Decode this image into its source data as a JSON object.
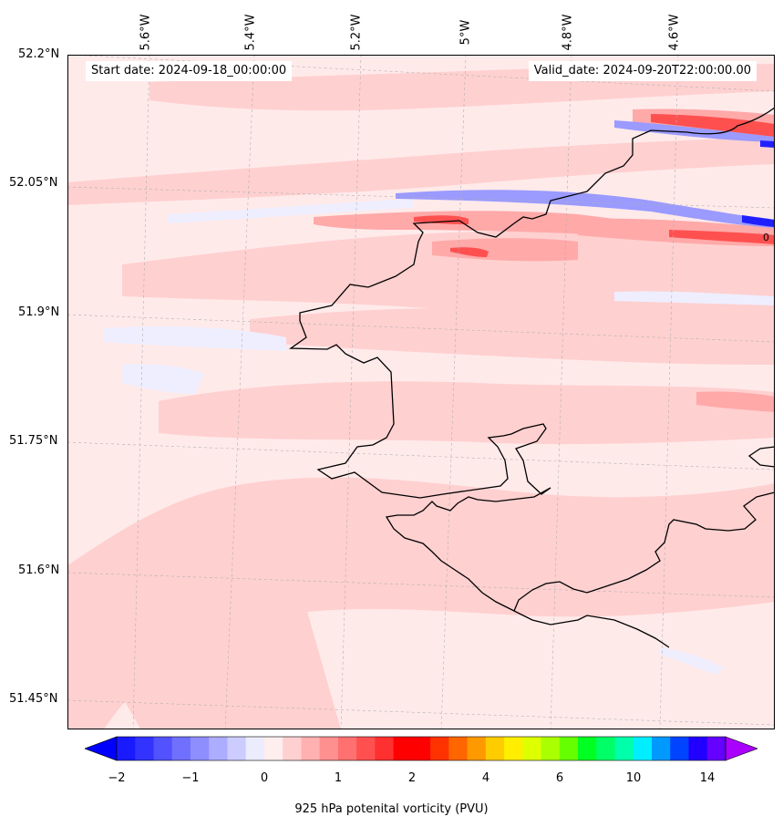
{
  "map": {
    "start_label": "Start date: 2024-09-18_00:00:00",
    "valid_label": "Valid_date: 2024-09-20T22:00:00.00",
    "lon_ticks": [
      "5.6°W",
      "5.4°W",
      "5.2°W",
      "5°W",
      "4.8°W",
      "4.6°W"
    ],
    "lat_ticks": [
      "52.2°N",
      "52.05°N",
      "51.9°N",
      "51.75°N",
      "51.6°N",
      "51.45°N"
    ],
    "contour_note": "0"
  },
  "colorbar": {
    "label": "925 hPa potenital vorticity (PVU)",
    "tick_labels": [
      "−2",
      "−1",
      "0",
      "1",
      "2",
      "4",
      "6",
      "10",
      "14"
    ],
    "colors": [
      "#1a1aff",
      "#3333ff",
      "#5252ff",
      "#7070ff",
      "#8e8eff",
      "#adadff",
      "#ccccff",
      "#ececff",
      "#ffeeee",
      "#ffd0d0",
      "#ffb0b0",
      "#ff9090",
      "#ff7070",
      "#ff5050",
      "#ff3030",
      "#ff0000",
      "#ff0000",
      "#ff3300",
      "#ff6600",
      "#ff9900",
      "#ffcc00",
      "#ffee00",
      "#ddff00",
      "#aaff00",
      "#66ff00",
      "#00ff22",
      "#00ff66",
      "#00ffaa",
      "#00eeff",
      "#0099ff",
      "#0044ff",
      "#2200ff",
      "#6600ff"
    ],
    "min_color": "#0000ff",
    "max_color": "#aa00ff"
  },
  "palette": {
    "land_line": "#000000",
    "light_pink": "#ffeaea",
    "pink": "#ffd0d0",
    "mid_pink": "#ffa9a9",
    "red": "#ff5050",
    "light_blue": "#eeeeff",
    "blue": "#9a9aff",
    "dark_blue": "#2020ff"
  }
}
